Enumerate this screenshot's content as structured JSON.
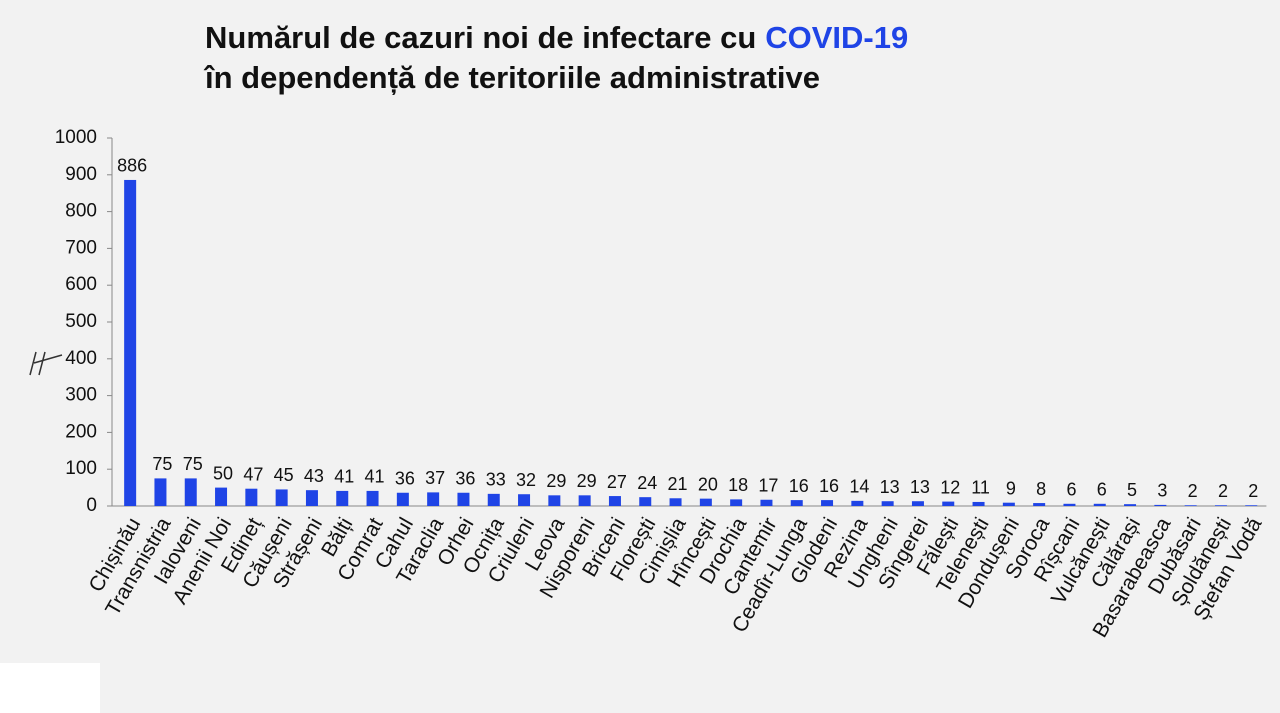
{
  "chart_data": {
    "type": "bar",
    "title": [
      "Numărul de cazuri noi de infectare cu",
      "COVID-19"
    ],
    "subtitle": "în dependență de teritoriile administrative",
    "categories": [
      "Chișinău",
      "Transnistria",
      "Ialoveni",
      "Anenii Noi",
      "Edineț",
      "Căușeni",
      "Strășeni",
      "Bălți",
      "Comrat",
      "Cahul",
      "Taraclia",
      "Orhei",
      "Ocnița",
      "Criuleni",
      "Leova",
      "Nisporeni",
      "Briceni",
      "Florești",
      "Cimișlia",
      "Hîncești",
      "Drochia",
      "Cantemir",
      "Ceadîr-Lunga",
      "Glodeni",
      "Rezina",
      "Ungheni",
      "Sîngerei",
      "Fălești",
      "Telenești",
      "Dondușeni",
      "Soroca",
      "Rîșcani",
      "Vulcănești",
      "Călărași",
      "Basarabeasca",
      "Dubăsari",
      "Șoldănești",
      "Ștefan Vodă"
    ],
    "values": [
      886,
      75,
      75,
      50,
      47,
      45,
      43,
      41,
      41,
      36,
      37,
      36,
      33,
      32,
      29,
      29,
      27,
      24,
      21,
      20,
      18,
      17,
      16,
      16,
      14,
      13,
      13,
      12,
      11,
      9,
      8,
      6,
      6,
      5,
      3,
      2,
      2,
      2
    ],
    "color": "#1f44e6",
    "title_highlight_color": "#1f44e6",
    "ylim": [
      0,
      1000
    ],
    "yticks": [
      0,
      100,
      200,
      300,
      400,
      500,
      600,
      700,
      800,
      900,
      1000
    ]
  }
}
